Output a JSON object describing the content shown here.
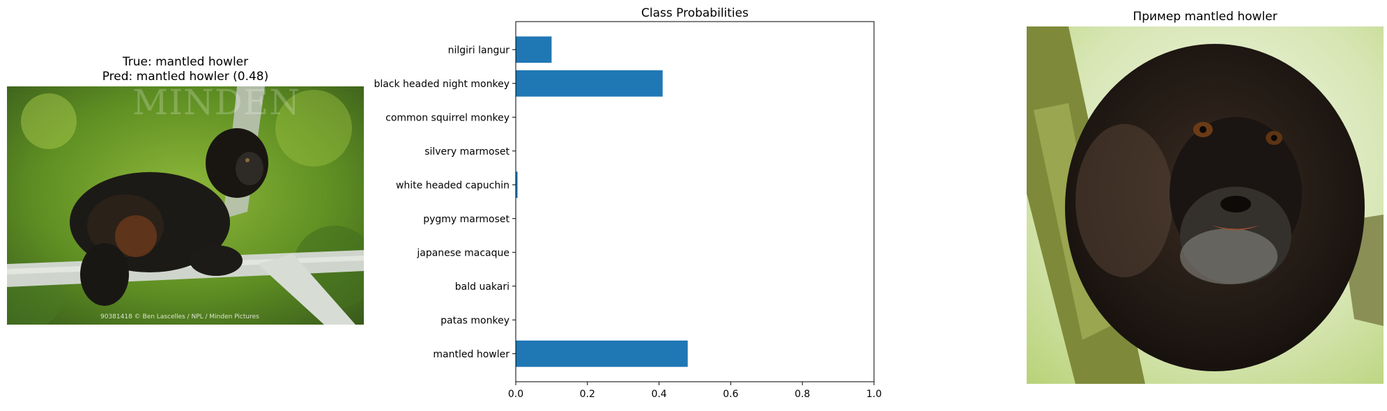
{
  "left_panel": {
    "title_line1": "True: mantled howler",
    "title_line2": "Pred: mantled howler (0.48)",
    "watermark": "MINDEN",
    "credit": "90381418 © Ben Lascelles / NPL / Minden Pictures"
  },
  "right_panel": {
    "title": "Пример mantled howler"
  },
  "chart_data": {
    "type": "bar",
    "orientation": "horizontal",
    "title": "Class Probabilities",
    "categories": [
      "mantled howler",
      "patas monkey",
      "bald uakari",
      "japanese macaque",
      "pygmy marmoset",
      "white headed capuchin",
      "silvery marmoset",
      "common squirrel monkey",
      "black headed night monkey",
      "nilgiri langur"
    ],
    "values": [
      0.48,
      0.0,
      0.0,
      0.0,
      0.0,
      0.005,
      0.0,
      0.0,
      0.41,
      0.1
    ],
    "xlim": [
      0,
      1.0
    ],
    "xticks": [
      "0.0",
      "0.2",
      "0.4",
      "0.6",
      "0.8",
      "1.0"
    ],
    "bar_color": "#1f77b4",
    "grid": false
  }
}
